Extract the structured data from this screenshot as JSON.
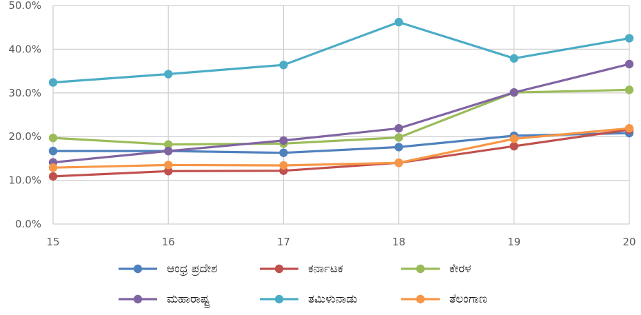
{
  "chart_data": {
    "type": "line",
    "x": [
      "15",
      "16",
      "17",
      "18",
      "19",
      "20"
    ],
    "ylim": [
      0,
      50
    ],
    "y_ticks": [
      "0.0%",
      "10.0%",
      "20.0%",
      "30.0%",
      "40.0%",
      "50.0%"
    ],
    "grid": true,
    "legend_position": "bottom",
    "series": [
      {
        "name": "ಆಂಧ್ರ ಪ್ರದೇಶ",
        "color": "#4f81bd",
        "values": [
          16.7,
          16.7,
          16.3,
          17.6,
          20.2,
          20.8
        ]
      },
      {
        "name": "ಕರ್ನಾಟಕ",
        "color": "#c0504d",
        "values": [
          10.9,
          12.1,
          12.2,
          14.0,
          17.8,
          21.6
        ]
      },
      {
        "name": "ಕೇರಳ",
        "color": "#9bbb59",
        "values": [
          19.7,
          18.2,
          18.4,
          19.8,
          30.1,
          30.7
        ]
      },
      {
        "name": "ಮಹಾರಾಷ್ಟ್ರ",
        "color": "#8064a2",
        "values": [
          14.1,
          16.7,
          19.1,
          21.9,
          30.1,
          36.6
        ]
      },
      {
        "name": "ತಮಿಳುನಾಡು",
        "color": "#4bacc6",
        "values": [
          32.4,
          34.3,
          36.4,
          46.2,
          37.9,
          42.5
        ]
      },
      {
        "name": "ತೆಲಂಗಾಣ",
        "color": "#f79646",
        "values": [
          12.9,
          13.5,
          13.4,
          14.0,
          19.5,
          21.9
        ]
      }
    ]
  }
}
